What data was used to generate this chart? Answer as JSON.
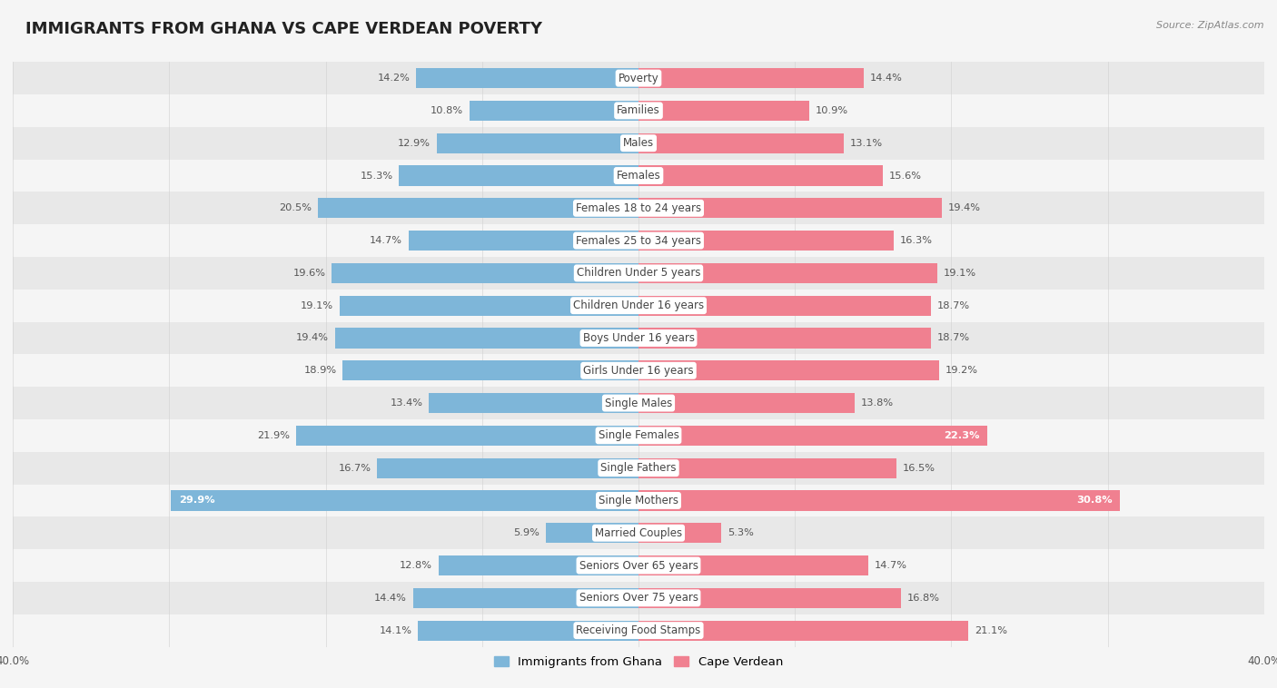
{
  "title": "IMMIGRANTS FROM GHANA VS CAPE VERDEAN POVERTY",
  "source": "Source: ZipAtlas.com",
  "categories": [
    "Poverty",
    "Families",
    "Males",
    "Females",
    "Females 18 to 24 years",
    "Females 25 to 34 years",
    "Children Under 5 years",
    "Children Under 16 years",
    "Boys Under 16 years",
    "Girls Under 16 years",
    "Single Males",
    "Single Females",
    "Single Fathers",
    "Single Mothers",
    "Married Couples",
    "Seniors Over 65 years",
    "Seniors Over 75 years",
    "Receiving Food Stamps"
  ],
  "ghana_values": [
    14.2,
    10.8,
    12.9,
    15.3,
    20.5,
    14.7,
    19.6,
    19.1,
    19.4,
    18.9,
    13.4,
    21.9,
    16.7,
    29.9,
    5.9,
    12.8,
    14.4,
    14.1
  ],
  "capeverde_values": [
    14.4,
    10.9,
    13.1,
    15.6,
    19.4,
    16.3,
    19.1,
    18.7,
    18.7,
    19.2,
    13.8,
    22.3,
    16.5,
    30.8,
    5.3,
    14.7,
    16.8,
    21.1
  ],
  "ghana_color": "#7EB6D9",
  "capeverde_color": "#F08090",
  "ghana_label": "Immigrants from Ghana",
  "capeverde_label": "Cape Verdean",
  "xlim": 40.0,
  "bar_height": 0.62,
  "bg_color": "#f5f5f5",
  "row_colors": [
    "#e8e8e8",
    "#f5f5f5"
  ],
  "title_fontsize": 13,
  "label_fontsize": 8.5,
  "value_fontsize": 8.2,
  "axis_fontsize": 8.5,
  "white_text_threshold": 22.0
}
